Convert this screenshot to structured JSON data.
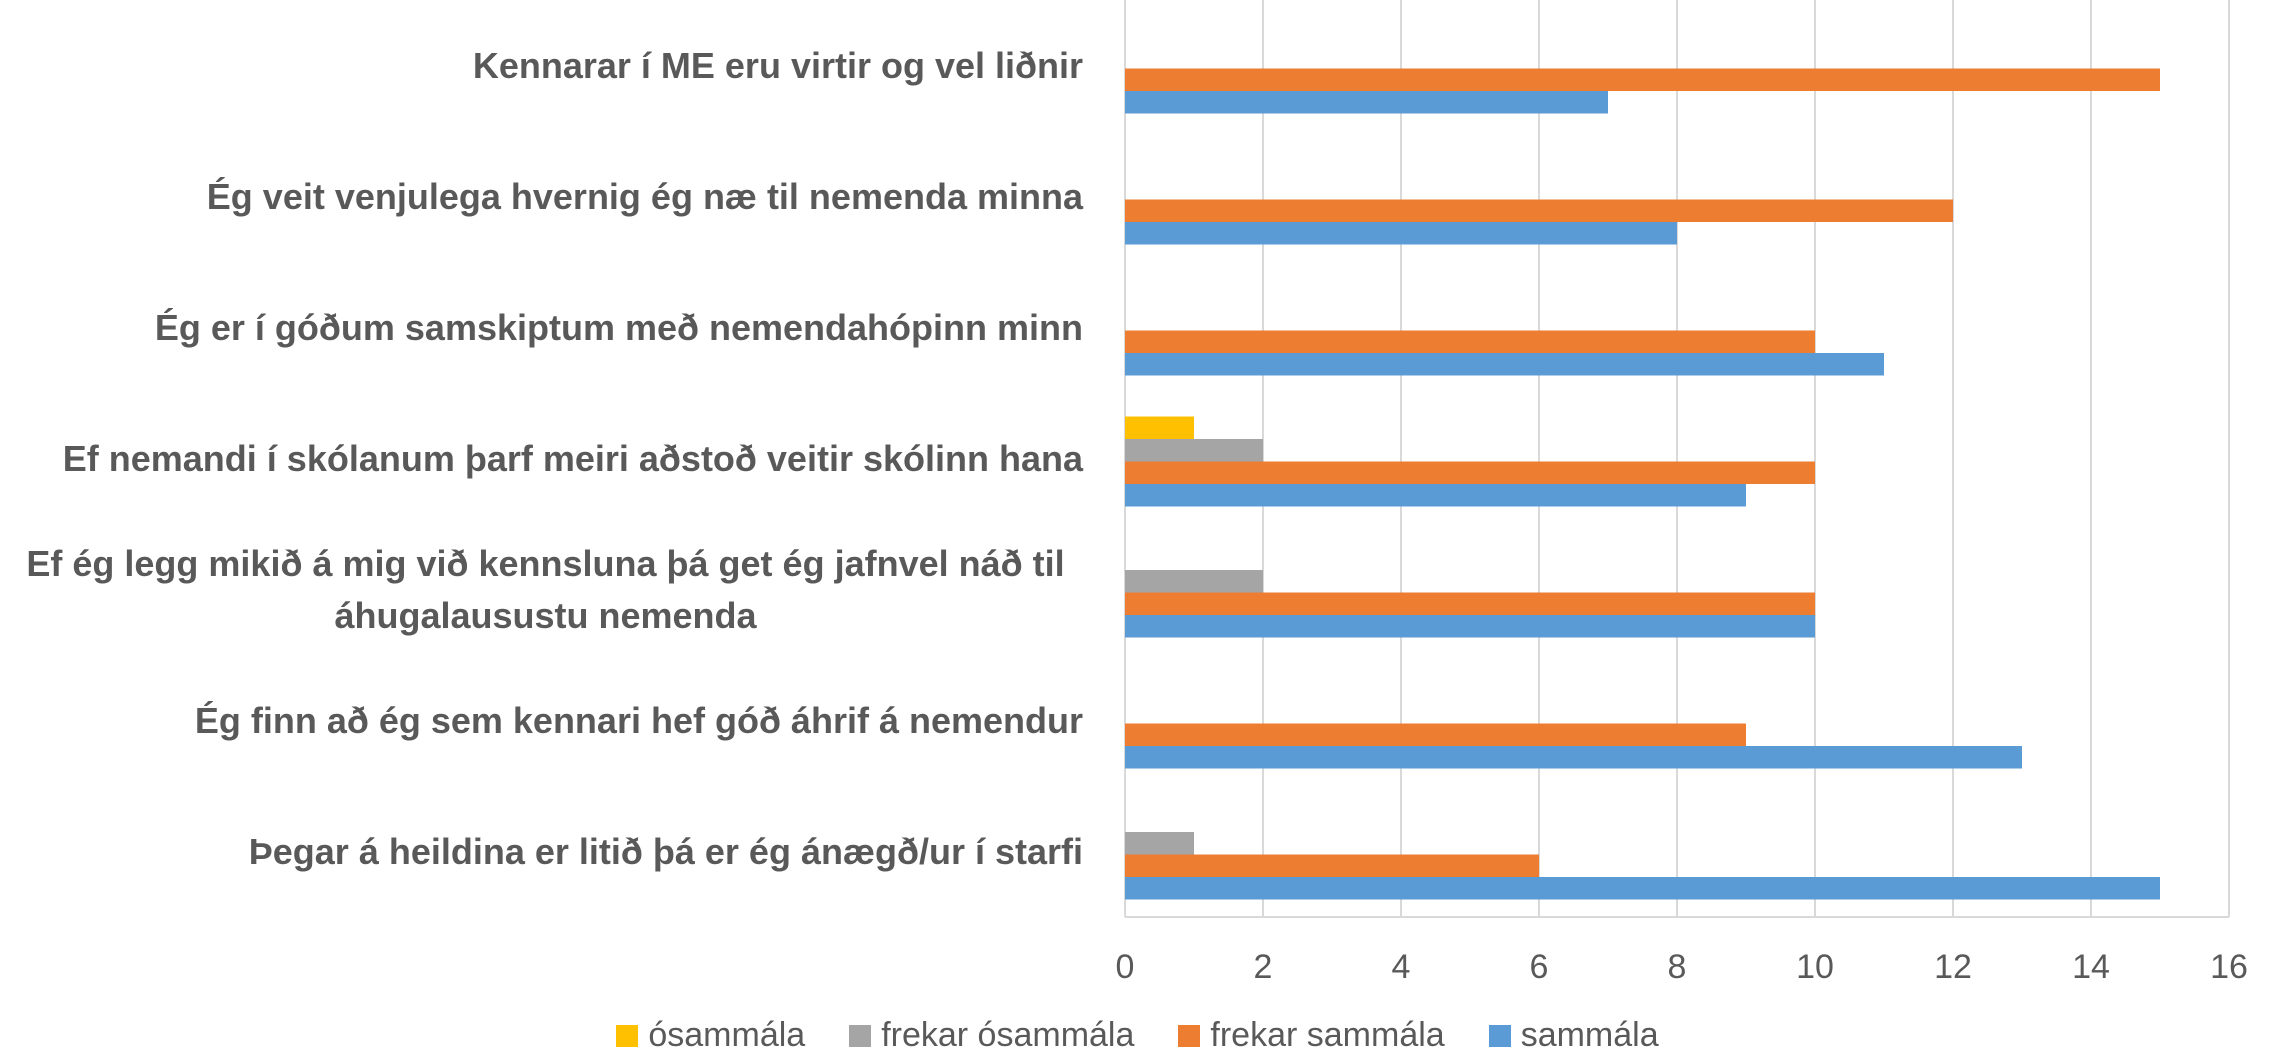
{
  "chart_data": {
    "type": "bar",
    "orientation": "horizontal",
    "categories": [
      "Kennarar í ME eru virtir og vel liðnir",
      "Ég veit venjulega hvernig ég næ til nemenda minna",
      "Ég er í góðum samskiptum með nemendahópinn minn",
      "Ef nemandi í skólanum þarf meiri aðstoð veitir skólinn hana",
      "Ef ég legg mikið á mig  við kennsluna þá get ég jafnvel náð til áhugalausustu nemenda",
      "Ég finn að ég sem kennari hef góð áhrif á nemendur",
      "Þegar á heildina er litið þá er ég ánægð/ur í starfi"
    ],
    "series": [
      {
        "name": "ósammála",
        "color": "#FFC000",
        "values": [
          0,
          0,
          0,
          1,
          0,
          0,
          0
        ]
      },
      {
        "name": "frekar ósammála",
        "color": "#A5A5A5",
        "values": [
          0,
          0,
          0,
          2,
          2,
          0,
          1
        ]
      },
      {
        "name": "frekar sammála",
        "color": "#ED7D31",
        "values": [
          15,
          12,
          10,
          10,
          10,
          9,
          6
        ]
      },
      {
        "name": "sammála",
        "color": "#5B9BD5",
        "values": [
          7,
          8,
          11,
          9,
          10,
          13,
          15
        ]
      }
    ],
    "xlim": [
      0,
      16
    ],
    "xticks": [
      0,
      2,
      4,
      6,
      8,
      10,
      12,
      14,
      16
    ],
    "grid": true,
    "legend": "bottom"
  }
}
